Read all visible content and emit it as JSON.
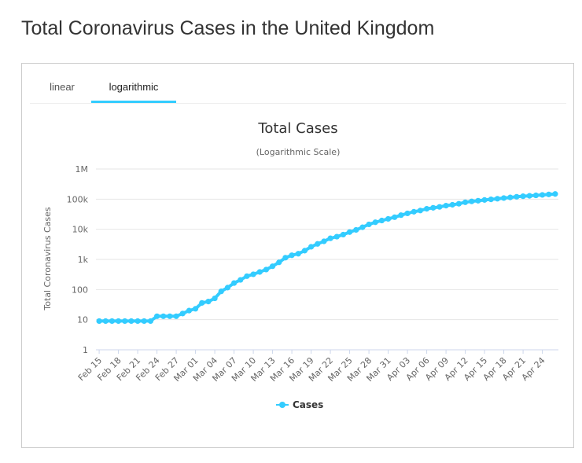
{
  "page": {
    "title": "Total Coronavirus Cases in the United Kingdom"
  },
  "tabs": [
    {
      "label": "linear",
      "active": false
    },
    {
      "label": "logarithmic",
      "active": true
    }
  ],
  "colors": {
    "series": "#33ccff",
    "tab_accent": "#33ccff",
    "grid": "#e6e6e6",
    "text": "#333333"
  },
  "chart_data": {
    "type": "line",
    "title": "Total Cases",
    "subtitle": "(Logarithmic Scale)",
    "ylabel": "Total Coronavirus Cases",
    "xlabel": "",
    "yscale": "log",
    "ylim": [
      1,
      1000000
    ],
    "yticks": [
      {
        "value": 1,
        "label": "1"
      },
      {
        "value": 10,
        "label": "10"
      },
      {
        "value": 100,
        "label": "100"
      },
      {
        "value": 1000,
        "label": "1k"
      },
      {
        "value": 10000,
        "label": "10k"
      },
      {
        "value": 100000,
        "label": "100k"
      },
      {
        "value": 1000000,
        "label": "1M"
      }
    ],
    "xticks": [
      "Feb 15",
      "Feb 18",
      "Feb 21",
      "Feb 24",
      "Feb 27",
      "Mar 01",
      "Mar 04",
      "Mar 07",
      "Mar 10",
      "Mar 13",
      "Mar 16",
      "Mar 19",
      "Mar 22",
      "Mar 25",
      "Mar 28",
      "Mar 31",
      "Apr 03",
      "Apr 06",
      "Apr 09",
      "Apr 12",
      "Apr 15",
      "Apr 18",
      "Apr 21",
      "Apr 24"
    ],
    "grid": true,
    "legend": {
      "position": "bottom-center"
    },
    "series": [
      {
        "name": "Cases",
        "color": "#33ccff",
        "x": [
          "Feb 15",
          "Feb 16",
          "Feb 17",
          "Feb 18",
          "Feb 19",
          "Feb 20",
          "Feb 21",
          "Feb 22",
          "Feb 23",
          "Feb 24",
          "Feb 25",
          "Feb 26",
          "Feb 27",
          "Feb 28",
          "Feb 29",
          "Mar 01",
          "Mar 02",
          "Mar 03",
          "Mar 04",
          "Mar 05",
          "Mar 06",
          "Mar 07",
          "Mar 08",
          "Mar 09",
          "Mar 10",
          "Mar 11",
          "Mar 12",
          "Mar 13",
          "Mar 14",
          "Mar 15",
          "Mar 16",
          "Mar 17",
          "Mar 18",
          "Mar 19",
          "Mar 20",
          "Mar 21",
          "Mar 22",
          "Mar 23",
          "Mar 24",
          "Mar 25",
          "Mar 26",
          "Mar 27",
          "Mar 28",
          "Mar 29",
          "Mar 30",
          "Mar 31",
          "Apr 01",
          "Apr 02",
          "Apr 03",
          "Apr 04",
          "Apr 05",
          "Apr 06",
          "Apr 07",
          "Apr 08",
          "Apr 09",
          "Apr 10",
          "Apr 11",
          "Apr 12",
          "Apr 13",
          "Apr 14",
          "Apr 15",
          "Apr 16",
          "Apr 17",
          "Apr 18",
          "Apr 19",
          "Apr 20",
          "Apr 21",
          "Apr 22",
          "Apr 23",
          "Apr 24",
          "Apr 25",
          "Apr 26"
        ],
        "values": [
          9,
          9,
          9,
          9,
          9,
          9,
          9,
          9,
          9,
          13,
          13,
          13,
          13,
          16,
          20,
          23,
          36,
          40,
          51,
          87,
          116,
          164,
          209,
          278,
          321,
          383,
          460,
          594,
          798,
          1140,
          1372,
          1543,
          1950,
          2626,
          3269,
          3983,
          5018,
          5683,
          6650,
          8077,
          9529,
          11658,
          14543,
          17089,
          19522,
          22141,
          25150,
          29474,
          33718,
          38168,
          41903,
          47806,
          51608,
          55242,
          60733,
          65077,
          70272,
          78758,
          84279,
          88621,
          93873,
          98476,
          103093,
          108692,
          114217,
          120067,
          124743,
          129044,
          133495,
          138078,
          143464,
          148377
        ]
      }
    ]
  }
}
